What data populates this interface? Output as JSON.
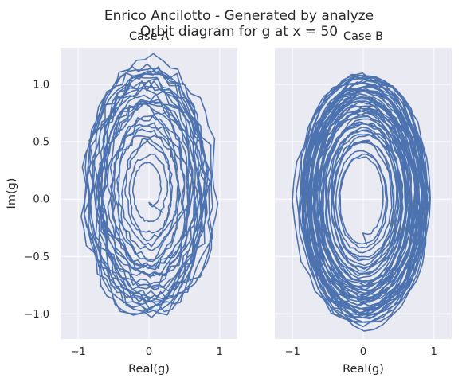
{
  "figure": {
    "title_line1": "Enrico Ancilotto - Generated by analyze",
    "title_line2": "Orbit diagram for g at x = 50"
  },
  "colors": {
    "line": "#4c72b0",
    "axes_bg": "#eaeaf2",
    "grid": "#ffffff",
    "text": "#262626"
  },
  "chart_data": [
    {
      "type": "line",
      "title": "Case A",
      "xlabel": "Real(g)",
      "ylabel": "Im(g)",
      "xlim": [
        -1.25,
        1.25
      ],
      "ylim": [
        -1.22,
        1.32
      ],
      "xticks": [
        -1,
        0,
        1
      ],
      "xtick_labels": [
        "−1",
        "0",
        "1"
      ],
      "yticks": [
        -1.0,
        -0.5,
        0.0,
        0.5,
        1.0
      ],
      "ytick_labels": [
        "−1.0",
        "−0.5",
        "0.0",
        "0.5",
        "1.0"
      ],
      "grid": true,
      "orbit": {
        "start": [
          0.2,
          -0.12
        ],
        "amplitude_start": 0.1,
        "amplitude_end": 1.05,
        "x_scale": 1.1,
        "y_scale": 1.05,
        "center": [
          0.0,
          0.08
        ],
        "turns": 30,
        "points": 1500,
        "jitter": 0.1
      }
    },
    {
      "type": "line",
      "title": "Case B",
      "xlabel": "Real(g)",
      "ylabel": "",
      "xlim": [
        -1.25,
        1.25
      ],
      "ylim": [
        -1.22,
        1.32
      ],
      "xticks": [
        -1,
        0,
        1
      ],
      "xtick_labels": [
        "−1",
        "0",
        "1"
      ],
      "yticks": [
        -1.0,
        -0.5,
        0.0,
        0.5,
        1.0
      ],
      "ytick_labels": [],
      "grid": true,
      "orbit": {
        "start": [
          0.05,
          -0.4
        ],
        "amplitude_start": 0.28,
        "amplitude_end": 1.08,
        "x_scale": 1.07,
        "y_scale": 1.0,
        "center": [
          0.0,
          0.0
        ],
        "turns": 55,
        "points": 2200,
        "jitter": 0.05
      }
    }
  ]
}
